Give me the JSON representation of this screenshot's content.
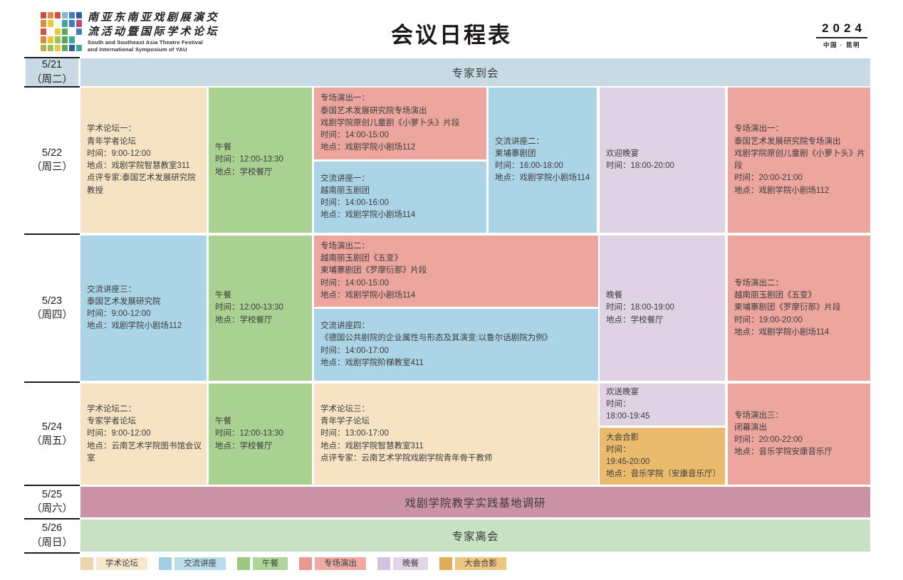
{
  "header": {
    "logo_cn_1": "南亚东南亚戏剧展演交",
    "logo_cn_2": "流活动暨国际学术论坛",
    "logo_en_1": "South and Southeast Asia Theatre Festival",
    "logo_en_2": "and International Symposium of YAU",
    "title": "会议日程表",
    "year": "2024",
    "location": "中国 · 昆明"
  },
  "logo": {
    "grid": [
      "#c94f3f",
      "#e08a3c",
      "#d94f3d",
      "#7fb8d8",
      "#3e7fbf",
      "#2f5c9e",
      "#e08a3c",
      "#efc53a",
      null,
      "#3ba8a0",
      "#3e7fbf",
      "#c04a7e",
      "#d94f3d",
      null,
      "#efc53a",
      "#58a95c",
      null,
      "#3e7fbf",
      "#e08a3c",
      "#efc53a",
      "#9cc25c",
      "#58a95c",
      "#3ba8a0",
      null,
      "#b5b03a",
      "#9cc25c",
      "#efc53a",
      "#58a95c",
      "#2f5c9e",
      "#3ba8a0"
    ]
  },
  "dates": [
    {
      "date": "5/21",
      "week": "（周二）"
    },
    {
      "date": "5/22",
      "week": "（周三）"
    },
    {
      "date": "5/23",
      "week": "（周四）"
    },
    {
      "date": "5/24",
      "week": "（周五）"
    },
    {
      "date": "5/25",
      "week": "（周六）"
    },
    {
      "date": "5/26",
      "week": "（周日）"
    }
  ],
  "bands": {
    "arrival": "专家到会",
    "research": "戏剧学院教学实践基地调研",
    "departure": "专家离会"
  },
  "cells": {
    "d22_forum1": [
      "学术论坛一：",
      "青年学者论坛",
      "时间：9:00-12:00",
      "地点：戏剧学院智慧教室311",
      "点评专家:泰国艺术发展研究院教授"
    ],
    "d22_lunch": [
      "午餐",
      "时间：12:00-13:30",
      "地点：学校餐厅"
    ],
    "d22_perf1": [
      "专场演出一：",
      "泰国艺术发展研究院专场演出",
      "戏剧学院原创儿童剧《小萝卜头》片段",
      "时间：14:00-15:00",
      "地点：戏剧学院小剧场112"
    ],
    "d22_lecture1": [
      "交流讲座一：",
      "越南丽玉剧团",
      "时间：14:00-16:00",
      "地点：戏剧学院小剧场114"
    ],
    "d22_lecture2": [
      "交流讲座二：",
      "柬埔寨剧团",
      "时间：16:00-18:00",
      "地点：戏剧学院小剧场114"
    ],
    "d22_banquet": [
      "欢迎晚宴",
      "时间：18:00-20:00"
    ],
    "d22_perf1b": [
      "专场演出一：",
      "泰国艺术发展研究院专场演出",
      "戏剧学院原创儿童剧《小萝卜头》片段",
      "时间：20:00-21:00",
      "地点：戏剧学院小剧场112"
    ],
    "d23_lecture3": [
      "交流讲座三：",
      "泰国艺术发展研究院",
      "时间：9:00-12:00",
      "地点：戏剧学院小剧场112"
    ],
    "d23_lunch": [
      "午餐",
      "时间：12:00-13:30",
      "地点：学校餐厅"
    ],
    "d23_perf2": [
      "专场演出二：",
      "越南丽玉剧团《五变》",
      "柬埔寨剧团《罗摩衍那》片段",
      "时间：14:00-15:00",
      "地点：戏剧学院小剧场114"
    ],
    "d23_lecture4": [
      "交流讲座四：",
      "《德国公共剧院的企业属性与形态及其演变:以鲁尔话剧院为例》",
      "时间：14:00-17:00",
      "地点：戏剧学院阶梯教室411"
    ],
    "d23_dinner": [
      "晚餐",
      "时间：18:00-19:00",
      "地点：学校餐厅"
    ],
    "d23_perf2b": [
      "专场演出二：",
      "越南丽玉剧团《五变》",
      "柬埔寨剧团《罗摩衍那》片段",
      "时间：19:00-20:00",
      "地点：戏剧学院小剧场114"
    ],
    "d24_forum2": [
      "学术论坛二：",
      "专家学者论坛",
      "时间：9:00-12:00",
      "地点：云南艺术学院图书馆会议室"
    ],
    "d24_lunch": [
      "午餐",
      "时间：12:00-13:30",
      "地点：学校餐厅"
    ],
    "d24_forum3": [
      "学术论坛三：",
      "青年学子论坛",
      "时间：13:00-17:00",
      "地点：戏剧学院智慧教室311",
      "点评专家：云南艺术学院戏剧学院青年骨干教师"
    ],
    "d24_farewell": [
      "欢送晚宴",
      "时间：",
      "18:00-19:45"
    ],
    "d24_photo": [
      "大会合影",
      "时间：",
      "19:45-20:00",
      "地点：音乐学院（安康音乐厅）"
    ],
    "d24_perf3": [
      "专场演出三：",
      "闭幕演出",
      "时间：20:00-22:00",
      "地点：音乐学院安康音乐厅"
    ]
  },
  "legend": [
    {
      "label": "学术论坛",
      "color": "#F5E3C3"
    },
    {
      "label": "交流讲座",
      "color": "#ABD4E6"
    },
    {
      "label": "午餐",
      "color": "#A9D292"
    },
    {
      "label": "专场演出",
      "color": "#EDA69E"
    },
    {
      "label": "晚餐",
      "color": "#DFD2E5"
    },
    {
      "label": "大会合影",
      "color": "#EABB6C"
    }
  ],
  "colors": {
    "forum": "#F5E3C3",
    "lecture": "#ABD4E6",
    "lunch": "#A9D292",
    "performance": "#EDA69E",
    "dinner": "#DFD2E5",
    "photo": "#EABB6C",
    "arrival_band": "#C8DAE3",
    "research_band": "#CC92A6",
    "departure_band": "#C8E0C3"
  }
}
